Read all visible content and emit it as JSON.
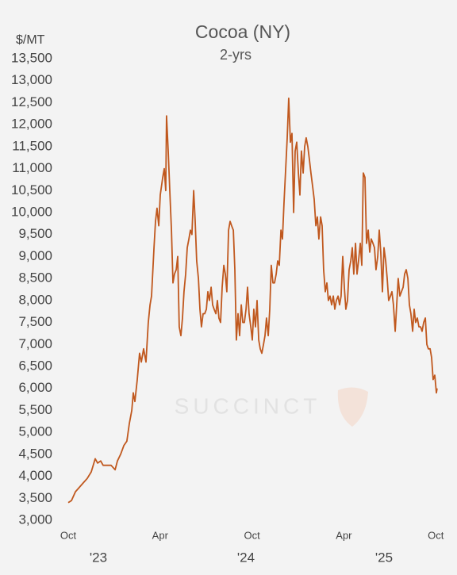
{
  "chart_data": {
    "type": "line",
    "title": "Cocoa (NY)",
    "subtitle": "2-yrs",
    "ylabel": "$/MT",
    "watermark": "SUCCINCT",
    "color": "#c0581e",
    "xlim": [
      -0.3,
      24.4
    ],
    "xticks": [
      {
        "value": 0,
        "label": "Oct"
      },
      {
        "value": 6,
        "label": "Apr"
      },
      {
        "value": 12,
        "label": "Oct"
      },
      {
        "value": 18,
        "label": "Apr"
      },
      {
        "value": 24,
        "label": "Oct"
      }
    ],
    "year_labels": [
      "'23",
      "'24",
      "'25"
    ],
    "ylim": [
      3000,
      13500
    ],
    "yticks": [
      {
        "value": 3000,
        "label": "3,000"
      },
      {
        "value": 3500,
        "label": "3,500"
      },
      {
        "value": 4000,
        "label": "4,000"
      },
      {
        "value": 4500,
        "label": "4,500"
      },
      {
        "value": 5000,
        "label": "5,000"
      },
      {
        "value": 5500,
        "label": "5,500"
      },
      {
        "value": 6000,
        "label": "6,000"
      },
      {
        "value": 6500,
        "label": "6,500"
      },
      {
        "value": 7000,
        "label": "7,000"
      },
      {
        "value": 7500,
        "label": "7,500"
      },
      {
        "value": 8000,
        "label": "8,000"
      },
      {
        "value": 8500,
        "label": "8,500"
      },
      {
        "value": 9000,
        "label": "9,000"
      },
      {
        "value": 9500,
        "label": "9,500"
      },
      {
        "value": 10000,
        "label": "10,000"
      },
      {
        "value": 10500,
        "label": "10,500"
      },
      {
        "value": 11000,
        "label": "11,000"
      },
      {
        "value": 11500,
        "label": "11,500"
      },
      {
        "value": 12000,
        "label": "12,000"
      },
      {
        "value": 12500,
        "label": "12,500"
      },
      {
        "value": 13000,
        "label": "13,000"
      },
      {
        "value": 13500,
        "label": "13,500"
      }
    ],
    "x": [
      0,
      0.21,
      0.47,
      0.73,
      0.98,
      1.24,
      1.5,
      1.76,
      1.92,
      2.12,
      2.28,
      2.54,
      2.8,
      3.06,
      3.21,
      3.42,
      3.63,
      3.83,
      3.99,
      4.15,
      4.25,
      4.35,
      4.51,
      4.66,
      4.77,
      4.92,
      5.08,
      5.23,
      5.34,
      5.44,
      5.6,
      5.7,
      5.8,
      5.91,
      6.01,
      6.17,
      6.27,
      6.37,
      6.42,
      6.53,
      6.63,
      6.74,
      6.84,
      6.94,
      7.05,
      7.15,
      7.25,
      7.36,
      7.46,
      7.56,
      7.67,
      7.77,
      7.88,
      7.98,
      8.08,
      8.19,
      8.29,
      8.39,
      8.5,
      8.6,
      8.7,
      8.81,
      8.91,
      9.02,
      9.12,
      9.22,
      9.33,
      9.43,
      9.53,
      9.64,
      9.74,
      9.84,
      9.95,
      10.05,
      10.16,
      10.26,
      10.36,
      10.47,
      10.57,
      10.67,
      10.78,
      10.88,
      10.98,
      11.09,
      11.19,
      11.3,
      11.4,
      11.5,
      11.61,
      11.71,
      11.81,
      11.92,
      12.02,
      12.12,
      12.23,
      12.33,
      12.44,
      12.54,
      12.64,
      12.75,
      12.85,
      12.95,
      13.06,
      13.16,
      13.26,
      13.37,
      13.47,
      13.58,
      13.68,
      13.78,
      13.89,
      13.99,
      14.09,
      14.2,
      14.3,
      14.4,
      14.51,
      14.61,
      14.72,
      14.82,
      14.92,
      15.03,
      15.13,
      15.23,
      15.34,
      15.44,
      15.54,
      15.65,
      15.75,
      15.85,
      15.96,
      16.06,
      16.17,
      16.27,
      16.37,
      16.48,
      16.58,
      16.68,
      16.79,
      16.89,
      16.99,
      17.1,
      17.2,
      17.31,
      17.41,
      17.51,
      17.62,
      17.72,
      17.82,
      17.93,
      18.03,
      18.13,
      18.24,
      18.34,
      18.45,
      18.55,
      18.65,
      18.76,
      18.86,
      18.96,
      19.07,
      19.17,
      19.27,
      19.38,
      19.48,
      19.59,
      19.69,
      19.79,
      19.9,
      20.0,
      20.1,
      20.21,
      20.31,
      20.41,
      20.52,
      20.62,
      20.73,
      20.83,
      20.93,
      21.04,
      21.14,
      21.24,
      21.35,
      21.45,
      21.55,
      21.66,
      21.76,
      21.87,
      21.97,
      22.07,
      22.18,
      22.28,
      22.38,
      22.49,
      22.59,
      22.69,
      22.8,
      22.9,
      23.01,
      23.11,
      23.21,
      23.32,
      23.42,
      23.52,
      23.63,
      23.73,
      23.83,
      23.94,
      24.04,
      24.09
    ],
    "values": [
      3400,
      3450,
      3650,
      3750,
      3850,
      3950,
      4100,
      4400,
      4300,
      4350,
      4250,
      4250,
      4250,
      4150,
      4350,
      4500,
      4700,
      4800,
      5200,
      5500,
      5900,
      5700,
      6200,
      6800,
      6600,
      6900,
      6600,
      7500,
      7900,
      8100,
      9200,
      9800,
      10100,
      9700,
      10400,
      10800,
      11000,
      10500,
      12200,
      11400,
      10500,
      9600,
      8400,
      8600,
      8700,
      9000,
      7400,
      7200,
      7600,
      8200,
      8600,
      9200,
      9400,
      9600,
      9500,
      10500,
      9800,
      8900,
      8500,
      7800,
      7400,
      7700,
      7700,
      7800,
      8200,
      8000,
      8300,
      7900,
      7800,
      7700,
      8000,
      7600,
      7500,
      8300,
      8800,
      8600,
      8200,
      9600,
      9800,
      9700,
      9600,
      8700,
      7100,
      7700,
      7200,
      7900,
      7500,
      7500,
      7800,
      8300,
      7700,
      7400,
      7100,
      7800,
      7400,
      8000,
      7100,
      6900,
      6800,
      7000,
      7200,
      7600,
      7200,
      7800,
      8800,
      8400,
      8400,
      8600,
      8900,
      8800,
      9600,
      9400,
      10200,
      11000,
      11700,
      12600,
      11600,
      11800,
      10000,
      11400,
      11600,
      10900,
      10400,
      11400,
      10900,
      11500,
      11700,
      11500,
      11200,
      10900,
      10600,
      10300,
      9700,
      9900,
      9400,
      9900,
      9700,
      8700,
      8200,
      8400,
      8000,
      8100,
      7900,
      8100,
      7800,
      8000,
      8100,
      7900,
      8100,
      9000,
      8300,
      7800,
      8000,
      8700,
      8900,
      9200,
      8600,
      9300,
      8600,
      8900,
      9300,
      8800,
      10900,
      10800,
      9300,
      9600,
      9100,
      9400,
      9300,
      9200,
      8700,
      9000,
      9600,
      9100,
      8200,
      9200,
      8900,
      8500,
      8000,
      8100,
      8200,
      7900,
      7300,
      7900,
      8500,
      8100,
      8200,
      8300,
      8600,
      8700,
      8500,
      7900,
      7700,
      7300,
      7800,
      7500,
      7600,
      7400,
      7400,
      7300,
      7500,
      7600,
      7000,
      6900,
      6900,
      6700,
      6200,
      6300,
      5900,
      6000
    ]
  }
}
